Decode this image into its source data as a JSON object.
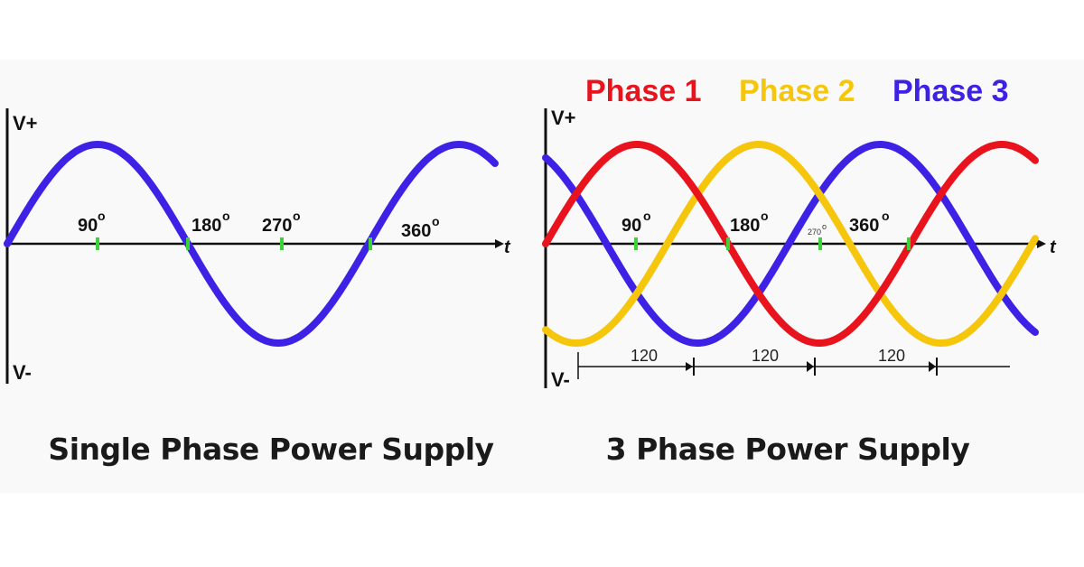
{
  "colors": {
    "single_wave": "#3d22e6",
    "phase1": "#e8131c",
    "phase2": "#f5c60c",
    "phase3": "#3d22e6",
    "tick": "#3fd13a",
    "axis": "#111111"
  },
  "left_panel": {
    "v_plus": "V+",
    "v_minus": "V-",
    "t_axis": "t",
    "degrees": [
      "90",
      "180",
      "270",
      "360"
    ],
    "degree_symbol": "o",
    "caption": "Single Phase Power Supply"
  },
  "right_panel": {
    "v_plus": "V+",
    "v_minus": "V-",
    "t_axis": "t",
    "degrees": [
      "90",
      "180",
      "270",
      "360"
    ],
    "degree_symbol": "o",
    "legend": [
      "Phase 1",
      "Phase 2",
      "Phase 3"
    ],
    "intervals": [
      "120",
      "120",
      "120"
    ],
    "caption": "3 Phase Power Supply"
  }
}
